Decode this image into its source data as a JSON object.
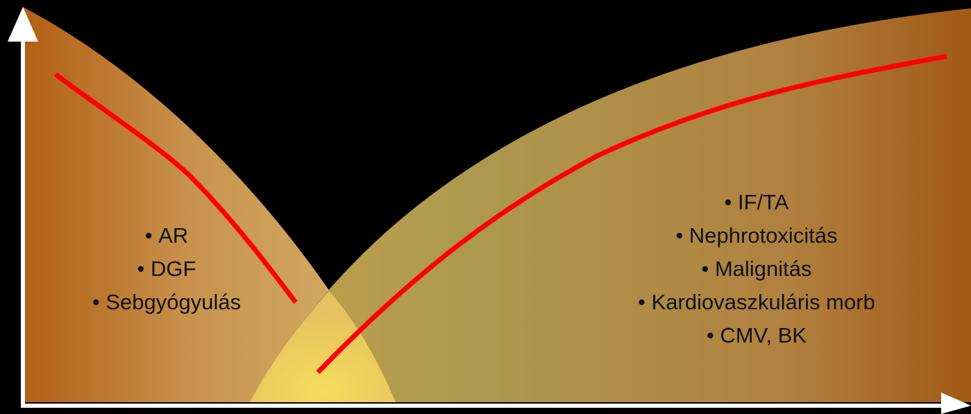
{
  "diagram": {
    "left_items": [
      "AR",
      "DGF",
      "Sebgyógyulás"
    ],
    "right_items": [
      "IF/TA",
      "Nephrotoxicitás",
      "Malignitás",
      "Kardiovaszkuláris morb",
      "CMV, BK"
    ],
    "colors": {
      "background": "#000000",
      "curve": "#ff0000",
      "axis": "#ffffff",
      "band_dark": "#b25f14",
      "band_light": "#d09a55",
      "overlap": "#f0d35a"
    }
  }
}
